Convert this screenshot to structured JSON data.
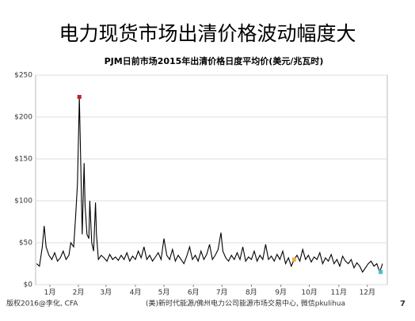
{
  "slide_title": "电力现货市场出清价格波动幅度大",
  "chart_data": {
    "type": "line",
    "title": "PJM日前市场2015年出清价格日度平均价(美元/兆瓦时)",
    "grid": true,
    "xlim": [
      0,
      370
    ],
    "xticks": [
      {
        "value": 15,
        "label": "1月"
      },
      {
        "value": 45,
        "label": "2月"
      },
      {
        "value": 74,
        "label": "3月"
      },
      {
        "value": 105,
        "label": "4月"
      },
      {
        "value": 135,
        "label": "5月"
      },
      {
        "value": 166,
        "label": "6月"
      },
      {
        "value": 196,
        "label": "7月"
      },
      {
        "value": 227,
        "label": "8月"
      },
      {
        "value": 258,
        "label": "9月"
      },
      {
        "value": 288,
        "label": "10月"
      },
      {
        "value": 319,
        "label": "11月"
      },
      {
        "value": 349,
        "label": "12月"
      }
    ],
    "ylim": [
      0,
      250
    ],
    "yticks": [
      {
        "value": 0,
        "label": "$0"
      },
      {
        "value": 50,
        "label": "$50"
      },
      {
        "value": 100,
        "label": "$100"
      },
      {
        "value": 150,
        "label": "$150"
      },
      {
        "value": 200,
        "label": "$200"
      },
      {
        "value": 250,
        "label": "$250"
      }
    ],
    "x": [
      1,
      4,
      7,
      9,
      11,
      14,
      17,
      20,
      23,
      26,
      29,
      32,
      35,
      37,
      40,
      42,
      44,
      46,
      47,
      49,
      51,
      52,
      54,
      56,
      57,
      59,
      61,
      63,
      64,
      66,
      69,
      72,
      75,
      78,
      81,
      84,
      87,
      90,
      93,
      96,
      99,
      102,
      105,
      108,
      111,
      114,
      117,
      120,
      123,
      126,
      129,
      132,
      135,
      138,
      141,
      144,
      147,
      150,
      153,
      156,
      159,
      162,
      165,
      168,
      171,
      174,
      177,
      180,
      183,
      186,
      189,
      192,
      195,
      197,
      200,
      203,
      206,
      209,
      212,
      215,
      218,
      221,
      224,
      227,
      230,
      233,
      236,
      239,
      242,
      245,
      248,
      251,
      254,
      257,
      260,
      263,
      266,
      269,
      272,
      275,
      278,
      281,
      284,
      287,
      290,
      293,
      296,
      299,
      302,
      305,
      308,
      311,
      314,
      317,
      320,
      323,
      326,
      329,
      332,
      335,
      338,
      341,
      344,
      347,
      350,
      353,
      356,
      359,
      362,
      365
    ],
    "series": [
      {
        "color": "#000000",
        "values": [
          25,
          22,
          45,
          70,
          45,
          35,
          30,
          38,
          28,
          32,
          40,
          30,
          35,
          50,
          45,
          80,
          120,
          224,
          170,
          60,
          145,
          95,
          60,
          55,
          100,
          50,
          40,
          98,
          60,
          30,
          35,
          32,
          28,
          36,
          30,
          33,
          29,
          35,
          30,
          38,
          28,
          34,
          30,
          40,
          32,
          45,
          30,
          35,
          28,
          33,
          38,
          30,
          55,
          35,
          30,
          42,
          28,
          35,
          30,
          25,
          34,
          45,
          30,
          35,
          28,
          40,
          30,
          36,
          48,
          30,
          35,
          42,
          62,
          40,
          32,
          28,
          35,
          30,
          38,
          30,
          45,
          28,
          33,
          30,
          40,
          28,
          35,
          30,
          48,
          30,
          34,
          28,
          36,
          30,
          40,
          25,
          32,
          22,
          30,
          35,
          28,
          42,
          30,
          35,
          27,
          33,
          30,
          38,
          25,
          32,
          28,
          36,
          25,
          30,
          22,
          34,
          28,
          25,
          30,
          20,
          26,
          22,
          15,
          20,
          25,
          28,
          22,
          25,
          15,
          25
        ]
      }
    ],
    "markers": [
      {
        "x": 46,
        "y": 224,
        "color": "#c0202a"
      },
      {
        "x": 272,
        "y": 30,
        "color": "#f0b040"
      },
      {
        "x": 363,
        "y": 15,
        "color": "#40c0d0"
      }
    ]
  },
  "footer": {
    "left": "版权2016@李化, CFA",
    "center": "(美)新时代能源/佛州电力公司能源市场交易中心, 微信pkulihua",
    "page": 7
  }
}
